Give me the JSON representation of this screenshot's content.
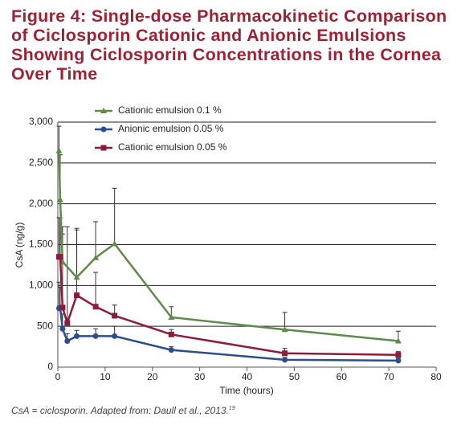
{
  "chart_data": {
    "type": "line",
    "title": "Figure 4: Single-dose Pharmacokinetic Comparison of Ciclosporin Cationic and Anionic Emulsions Showing Ciclosporin Concentrations in the Cornea Over Time",
    "xlabel": "Time (hours)",
    "ylabel": "CsA (ng/g)",
    "xlim": [
      0,
      80
    ],
    "xticks": [
      0,
      10,
      20,
      30,
      40,
      50,
      60,
      70,
      80
    ],
    "ylim": [
      0,
      3000
    ],
    "yticks": [
      0,
      500,
      {
        "value": 1000,
        "label": "1,000"
      },
      {
        "value": 1500,
        "label": "1,500"
      },
      {
        "value": 2000,
        "label": "2,000"
      },
      {
        "value": 2500,
        "label": "2,500"
      },
      {
        "value": 3000,
        "label": "3,000"
      }
    ],
    "grid": true,
    "legend": "top-left",
    "series": [
      {
        "name": "Cationic emulsion 0.1 %",
        "color": "#5f8a4a",
        "marker": "triangle",
        "x": [
          0.25,
          0.5,
          1,
          4,
          8,
          12,
          24,
          48,
          72
        ],
        "values": [
          2650,
          2050,
          1290,
          1100,
          1340,
          1510,
          610,
          460,
          320
        ],
        "errors": [
          300,
          550,
          430,
          600,
          440,
          680,
          130,
          210,
          120
        ]
      },
      {
        "name": "Anionic emulsion 0.05 %",
        "color": "#2c4e8c",
        "marker": "circle",
        "x": [
          0.25,
          0.5,
          1,
          2,
          4,
          8,
          12,
          24,
          48,
          72
        ],
        "values": [
          720,
          730,
          470,
          320,
          380,
          380,
          380,
          210,
          90,
          80
        ],
        "errors": [
          320,
          250,
          180,
          90,
          70,
          90,
          120,
          40,
          30,
          30
        ]
      },
      {
        "name": "Cationic emulsion 0.05 %",
        "color": "#8b1c3c",
        "marker": "square",
        "x": [
          0.25,
          0.5,
          1,
          2,
          4,
          8,
          12,
          24,
          48,
          72
        ],
        "values": [
          1350,
          1350,
          730,
          540,
          880,
          740,
          630,
          400,
          170,
          150
        ],
        "errors": [
          480,
          480,
          900,
          1180,
          800,
          420,
          130,
          60,
          60,
          40
        ]
      }
    ],
    "caption": {
      "text": "CsA = ciclosporin. Adapted from: Daull et al., 2013.",
      "ref": "19"
    }
  }
}
